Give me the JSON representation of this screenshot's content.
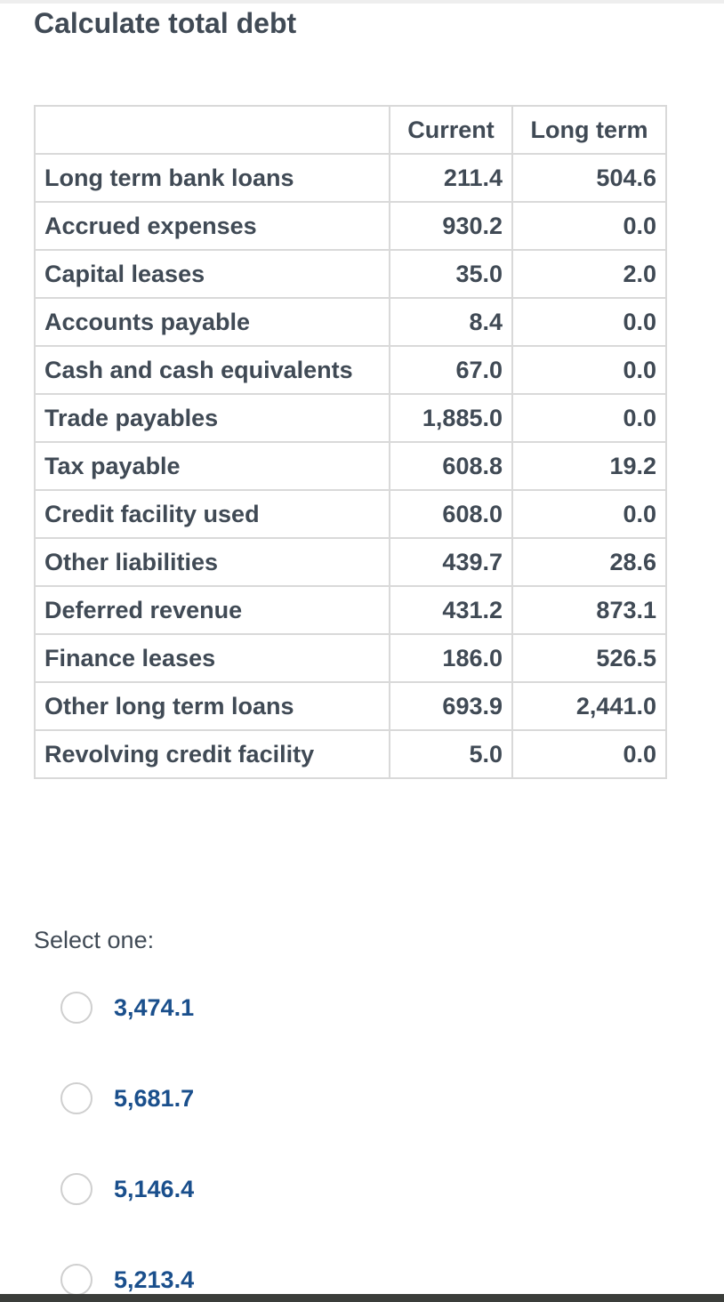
{
  "question": {
    "title": "Calculate total debt"
  },
  "table": {
    "headers": [
      "",
      "Current",
      "Long term"
    ],
    "rows": [
      {
        "label": "Long term bank loans",
        "current": "211.4",
        "long_term": "504.6"
      },
      {
        "label": "Accrued expenses",
        "current": "930.2",
        "long_term": "0.0"
      },
      {
        "label": "Capital leases",
        "current": "35.0",
        "long_term": "2.0"
      },
      {
        "label": "Accounts payable",
        "current": "8.4",
        "long_term": "0.0"
      },
      {
        "label": "Cash and cash equivalents",
        "current": "67.0",
        "long_term": "0.0"
      },
      {
        "label": "Trade payables",
        "current": "1,885.0",
        "long_term": "0.0"
      },
      {
        "label": "Tax payable",
        "current": "608.8",
        "long_term": "19.2"
      },
      {
        "label": "Credit facility used",
        "current": "608.0",
        "long_term": "0.0"
      },
      {
        "label": "Other liabilities",
        "current": "439.7",
        "long_term": "28.6"
      },
      {
        "label": "Deferred revenue",
        "current": "431.2",
        "long_term": "873.1"
      },
      {
        "label": "Finance leases",
        "current": "186.0",
        "long_term": "526.5"
      },
      {
        "label": "Other long term loans",
        "current": "693.9",
        "long_term": "2,441.0"
      },
      {
        "label": "Revolving credit facility",
        "current": "5.0",
        "long_term": "0.0"
      }
    ]
  },
  "answer": {
    "prompt": "Select one:",
    "options": [
      {
        "label": "3,474.1",
        "selected": false
      },
      {
        "label": "5,681.7",
        "selected": false
      },
      {
        "label": "5,146.4",
        "selected": false
      },
      {
        "label": "5,213.4",
        "selected": false
      }
    ]
  },
  "colors": {
    "text": "#404a55",
    "option_text": "#1a4f8c",
    "border": "#d9d9d9"
  }
}
